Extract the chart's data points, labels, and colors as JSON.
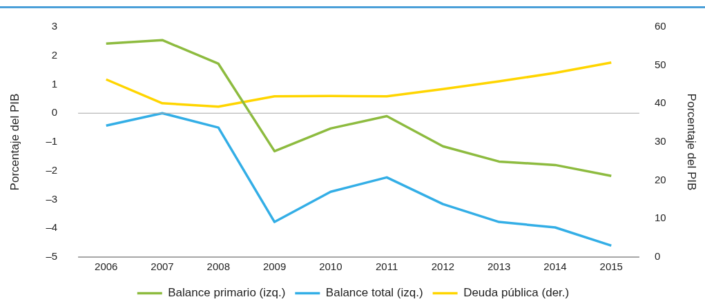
{
  "chart_data": {
    "type": "line",
    "ylabel": "Porcentaje del PIB",
    "y2label": "Porcentaje del PIB",
    "categories": [
      "2006",
      "2007",
      "2008",
      "2009",
      "2010",
      "2011",
      "2012",
      "2013",
      "2014",
      "2015"
    ],
    "series": [
      {
        "name": "Balance primario (izq.)",
        "color": "#8dbb3f",
        "values": [
          2.42,
          2.54,
          1.72,
          -1.32,
          -0.53,
          -0.1,
          -1.15,
          -1.68,
          -1.8,
          -2.18
        ]
      },
      {
        "name": "Balance total (izq.)",
        "color": "#33aee6",
        "values": [
          -0.43,
          0,
          -0.5,
          -3.78,
          -2.73,
          -2.23,
          -3.16,
          -3.78,
          -3.97,
          -4.6
        ]
      },
      {
        "name": "Deuda pública (der.)",
        "color": "#ffd500",
        "axis": "y2",
        "values": [
          46.3,
          40.1,
          39.2,
          41.9,
          42.0,
          41.9,
          43.8,
          45.8,
          48.0,
          50.7
        ]
      }
    ],
    "ylim": [
      -5,
      3
    ],
    "yticks": [
      {
        "value": -5,
        "label": "–5"
      },
      {
        "value": -4,
        "label": "–4"
      },
      {
        "value": -3,
        "label": "–3"
      },
      {
        "value": -2,
        "label": "–2"
      },
      {
        "value": -1,
        "label": "–1"
      },
      0,
      1,
      2,
      3
    ],
    "y2lim": [
      0,
      60
    ],
    "y2ticks": [
      0,
      10,
      20,
      30,
      40,
      50,
      60
    ],
    "ref_lines": [
      {
        "axis": "y",
        "value": 0,
        "color": "#a6a6a6"
      }
    ],
    "grid": false,
    "legend": "bottom",
    "marker": "none",
    "line_style": "solid"
  }
}
